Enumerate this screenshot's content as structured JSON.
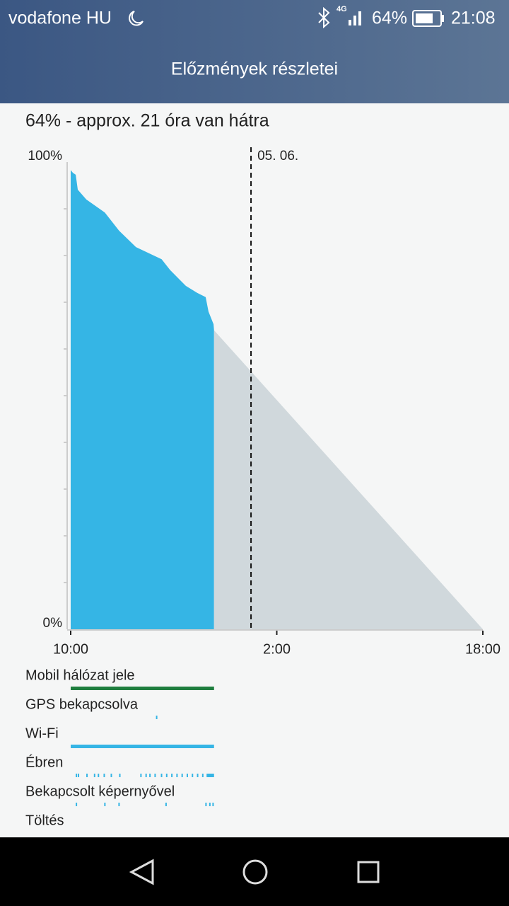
{
  "status_bar": {
    "carrier": "vodafone HU",
    "network": "4G",
    "battery": "64%",
    "time": "21:08"
  },
  "app_bar": {
    "title": "Előzmények részletei"
  },
  "summary": "64% - approx. 21 óra van hátra",
  "chart_data": {
    "type": "area",
    "xlim": [
      10,
      42
    ],
    "xticks": [
      {
        "value": 10,
        "label": "10:00"
      },
      {
        "value": 26,
        "label": "2:00"
      },
      {
        "value": 42,
        "label": "18:00"
      }
    ],
    "ylim": [
      0,
      100
    ],
    "yticks": [
      {
        "value": 0,
        "label": "0%"
      },
      {
        "value": 100,
        "label": "100%"
      }
    ],
    "yminorticks": [
      10,
      20,
      30,
      40,
      50,
      60,
      70,
      80,
      90
    ],
    "marker": {
      "value": 24,
      "label": "05. 06."
    },
    "series": [
      {
        "color": "#35b5e5",
        "x": [
          10,
          10.17,
          10.39,
          10.55,
          11.21,
          12.65,
          13.76,
          15.07,
          17.06,
          17.72,
          18.94,
          19.82,
          20.48,
          20.7,
          21.09,
          21.13
        ],
        "values": [
          98.3,
          97.7,
          97.3,
          94.1,
          92,
          89.2,
          85.3,
          81.8,
          79.2,
          76.9,
          73.5,
          72,
          71.1,
          68,
          65.3,
          64
        ]
      },
      {
        "color": "#d0d8dc",
        "x": [
          21.13,
          42
        ],
        "values": [
          64,
          0
        ]
      }
    ],
    "tracks": [
      {
        "label": "Mobil hálózat jele",
        "color": "#1e7e3e",
        "segments": [
          [
            10,
            21.13
          ]
        ]
      },
      {
        "label": "GPS bekapcsolva",
        "color": "#35b5e5",
        "segments": [
          [
            16.62,
            16.72
          ]
        ]
      },
      {
        "label": "Wi-Fi",
        "color": "#35b5e5",
        "segments": [
          [
            10,
            21.13
          ]
        ]
      },
      {
        "label": "Ébren",
        "color": "#35b5e5",
        "segments": [
          [
            10.39,
            10.5
          ],
          [
            10.55,
            10.66
          ],
          [
            11.21,
            11.3
          ],
          [
            11.8,
            11.9
          ],
          [
            12.1,
            12.2
          ],
          [
            12.55,
            12.63
          ],
          [
            13.1,
            13.2
          ],
          [
            13.76,
            13.86
          ],
          [
            15.4,
            15.5
          ],
          [
            15.8,
            15.9
          ],
          [
            16.1,
            16.2
          ],
          [
            16.5,
            16.6
          ],
          [
            17.0,
            17.1
          ],
          [
            17.4,
            17.5
          ],
          [
            17.8,
            17.9
          ],
          [
            18.2,
            18.3
          ],
          [
            18.6,
            18.7
          ],
          [
            19.0,
            19.1
          ],
          [
            19.4,
            19.5
          ],
          [
            19.8,
            19.9
          ],
          [
            20.2,
            20.3
          ],
          [
            20.55,
            21.13
          ]
        ]
      },
      {
        "label": "Bekapcsolt képernyővel",
        "color": "#35b5e5",
        "segments": [
          [
            10.39,
            10.5
          ],
          [
            12.6,
            12.7
          ],
          [
            13.7,
            13.8
          ],
          [
            17.35,
            17.45
          ],
          [
            20.45,
            20.55
          ],
          [
            20.75,
            20.85
          ],
          [
            21.0,
            21.1
          ]
        ]
      },
      {
        "label": "Töltés",
        "color": "#35b5e5",
        "segments": []
      }
    ]
  }
}
